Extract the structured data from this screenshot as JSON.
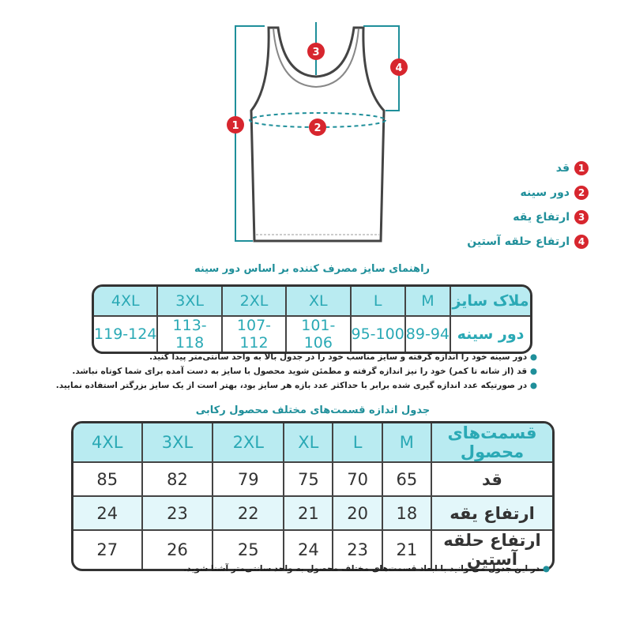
{
  "diagram": {
    "markers": [
      "1",
      "2",
      "3",
      "4"
    ],
    "colors": {
      "marker": "#d7262e",
      "line": "#1f8f9a"
    }
  },
  "legend": [
    {
      "num": "1",
      "label": "قد"
    },
    {
      "num": "2",
      "label": "دور سینه"
    },
    {
      "num": "3",
      "label": "ارتفاع یقه"
    },
    {
      "num": "4",
      "label": "ارتفاع حلقه آستین"
    }
  ],
  "table1": {
    "title": "راهنمای سایز مصرف کننده بر اساس دور سینه",
    "header_label": "ملاک سایز",
    "sizes": [
      "M",
      "L",
      "XL",
      "2XL",
      "3XL",
      "4XL"
    ],
    "row": {
      "label": "دور سینه",
      "values": [
        "89-94",
        "95-100",
        "101-106",
        "107-112",
        "113-118",
        "119-124"
      ]
    },
    "notes": [
      "دور سینه خود را اندازه گرفته و سایز مناسب خود را در جدول بالا به واحد سانتی‌متر پیدا کنید.",
      "قد (از شانه تا کمر) خود را نیز اندازه گرفته و مطمئن شوید محصول با سایز به دست آمده برای شما کوتاه نباشد.",
      "در صورتیکه عدد اندازه گیری شده برابر با حداکثر عدد بازه هر سایز بود، بهتر است از یک سایز بزرگتر استفاده نمایید."
    ]
  },
  "table2": {
    "title": "جدول اندازه قسمت‌های مختلف محصول رکابی",
    "header_label": "قسمت‌های محصول",
    "sizes": [
      "M",
      "L",
      "XL",
      "2XL",
      "3XL",
      "4XL"
    ],
    "rows": [
      {
        "label": "قد",
        "values": [
          "65",
          "70",
          "75",
          "79",
          "82",
          "85"
        ]
      },
      {
        "label": "ارتفاع یقه",
        "values": [
          "18",
          "20",
          "21",
          "22",
          "23",
          "24"
        ]
      },
      {
        "label": "ارتفاع حلقه آستین",
        "values": [
          "21",
          "23",
          "24",
          "25",
          "26",
          "27"
        ]
      }
    ],
    "note": "در این جدول می‌توانید با ابعاد قسمت‌های مختلف محصول به واحد سانتی‌متر آشنا شوید."
  }
}
